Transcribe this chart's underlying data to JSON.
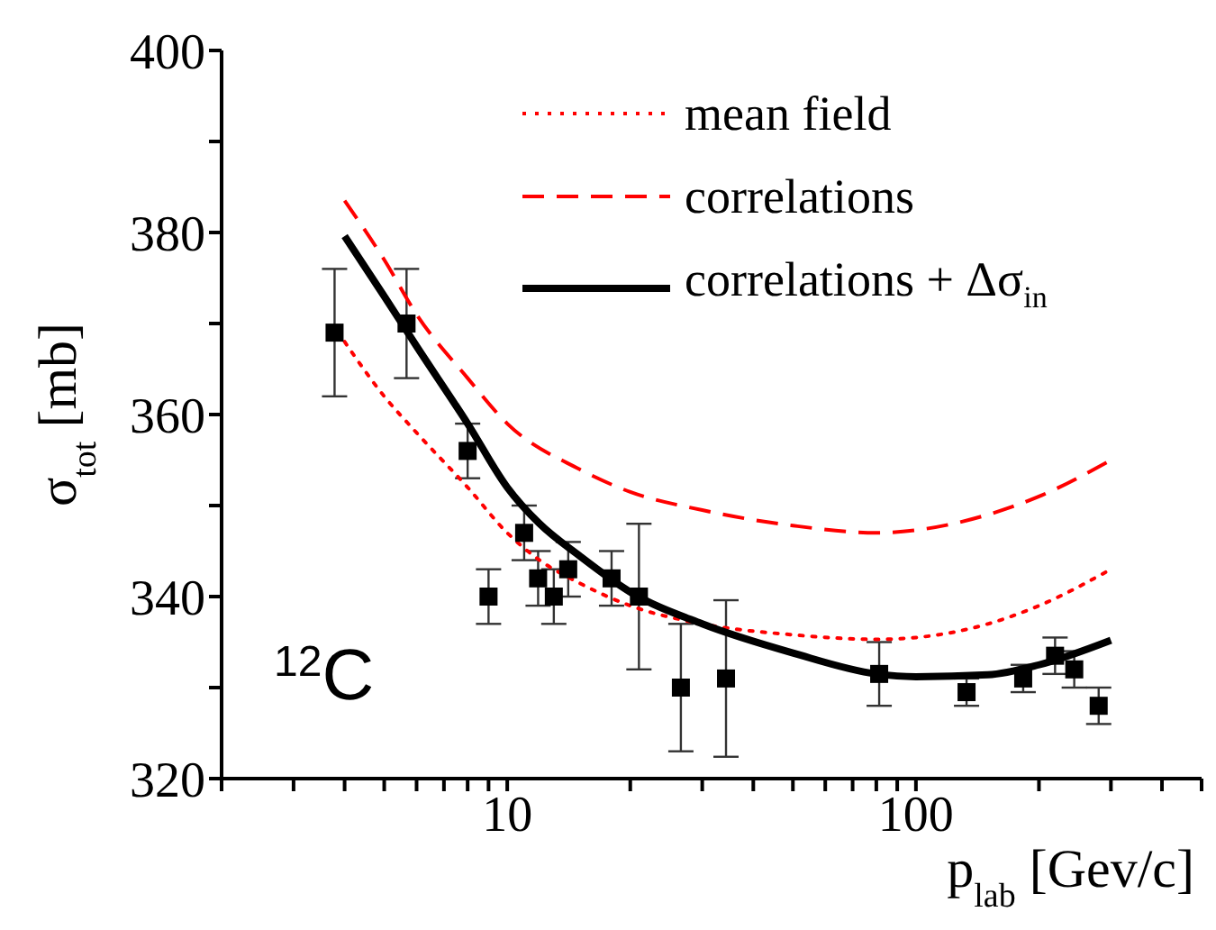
{
  "chart_data": {
    "type": "scatter",
    "xlabel": "p$_{lab}$ [Gev/c]",
    "ylabel": "σ$_{tot}$ [mb]",
    "log": "x",
    "xlim": [
      2,
      500
    ],
    "xticks": [
      {
        "value": 2,
        "label": null
      },
      {
        "value": 3,
        "label": null
      },
      {
        "value": 4,
        "label": null
      },
      {
        "value": 5,
        "label": null
      },
      {
        "value": 6,
        "label": null
      },
      {
        "value": 7,
        "label": null
      },
      {
        "value": 8,
        "label": null
      },
      {
        "value": 9,
        "label": null
      },
      10,
      {
        "value": 20,
        "label": null
      },
      {
        "value": 30,
        "label": null
      },
      {
        "value": 40,
        "label": null
      },
      {
        "value": 50,
        "label": null
      },
      {
        "value": 60,
        "label": null
      },
      {
        "value": 70,
        "label": null
      },
      {
        "value": 80,
        "label": null
      },
      {
        "value": 90,
        "label": null
      },
      100,
      {
        "value": 200,
        "label": null
      },
      {
        "value": 300,
        "label": null
      },
      {
        "value": 400,
        "label": null
      },
      {
        "value": 500,
        "label": null
      }
    ],
    "ylim": [
      320,
      400
    ],
    "yticks": [
      320,
      {
        "value": 330,
        "label": null
      },
      340,
      {
        "value": 350,
        "label": null
      },
      360,
      {
        "value": 370,
        "label": null
      },
      380,
      {
        "value": 390,
        "label": null
      },
      400
    ],
    "grid": false,
    "legend": "top right",
    "annotations": [
      "$^{12}$C"
    ],
    "series": [
      {
        "type": "scatter",
        "color": "#000000",
        "marker": "square",
        "x": [
          3.78,
          5.67,
          8.0,
          9.0,
          11.0,
          11.9,
          13.0,
          14.1,
          18.0,
          21.0,
          26.6,
          34.3,
          81.3,
          133,
          183,
          219,
          244,
          280
        ],
        "values": [
          369,
          370,
          356,
          340,
          347,
          342,
          340,
          343,
          342,
          340,
          330,
          331,
          331.5,
          329.5,
          331,
          333.5,
          332,
          328
        ],
        "errors": [
          [
            362,
            376
          ],
          [
            364,
            376
          ],
          [
            353,
            359
          ],
          [
            337,
            343
          ],
          [
            344,
            350
          ],
          [
            339,
            345
          ],
          [
            337,
            343
          ],
          [
            340,
            346
          ],
          [
            339,
            345
          ],
          [
            332,
            348
          ],
          [
            323,
            337
          ],
          [
            322.4,
            339.6
          ],
          [
            328,
            335
          ],
          [
            328,
            331
          ],
          [
            329.5,
            332.5
          ],
          [
            331.5,
            335.5
          ],
          [
            330,
            334
          ],
          [
            326,
            330
          ]
        ]
      },
      {
        "type": "line",
        "name": "mean field",
        "color": "#ff0000",
        "line_style": "dotted",
        "marker": "none",
        "x": [
          4,
          5,
          6,
          8,
          10,
          12,
          15,
          20,
          30,
          50,
          80,
          100,
          150,
          200,
          300
        ],
        "values": [
          368,
          362,
          358,
          352,
          347,
          344,
          341.5,
          339,
          337,
          335.8,
          335.3,
          335.5,
          337,
          339,
          343
        ]
      },
      {
        "type": "line",
        "name": "correlations",
        "color": "#ff0000",
        "line_style": "dashed",
        "marker": "none",
        "x": [
          4,
          5,
          6,
          8,
          10,
          15,
          20,
          30,
          50,
          80,
          100,
          150,
          200,
          300
        ],
        "values": [
          383.5,
          377,
          371,
          364,
          359,
          354,
          351.5,
          349.5,
          347.8,
          347,
          347.3,
          349,
          351,
          355
        ]
      },
      {
        "type": "line",
        "name": "correlations + Δσ$_{in}$",
        "color": "#000000",
        "line_style": "solid",
        "marker": "none",
        "x": [
          4,
          5,
          6,
          8,
          10,
          12,
          15,
          20,
          30,
          50,
          80,
          100,
          150,
          200,
          300
        ],
        "values": [
          379.6,
          373,
          367.5,
          359,
          352,
          348,
          344.5,
          340.5,
          337,
          333.8,
          331.5,
          331.2,
          331.4,
          332.5,
          335.2
        ]
      }
    ]
  }
}
